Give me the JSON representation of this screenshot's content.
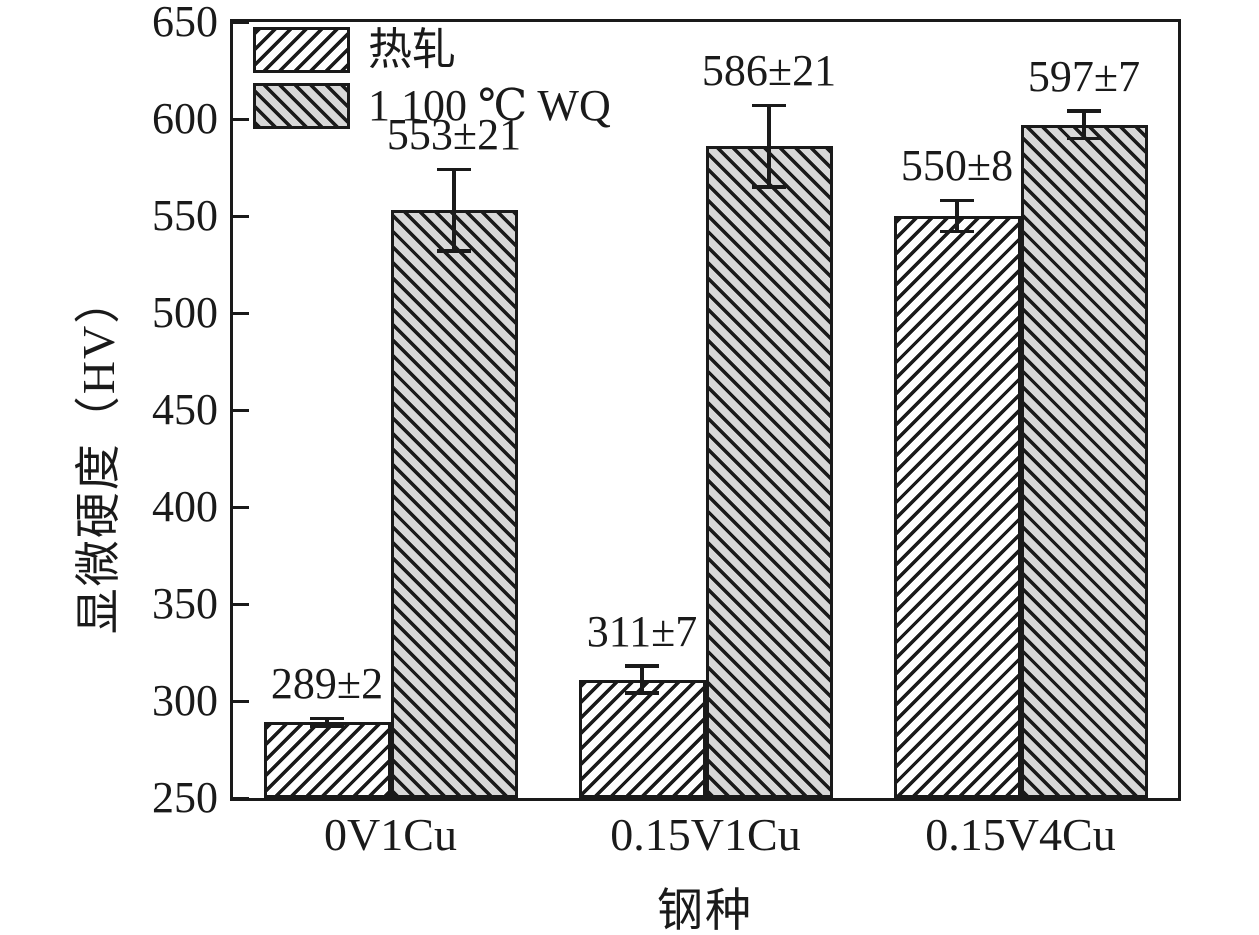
{
  "colors": {
    "ink": "#1a1a1a"
  },
  "chart_data": {
    "type": "bar",
    "title": "",
    "xlabel": "钢种",
    "ylabel": "显微硬度（HV）",
    "ylim": [
      250,
      650
    ],
    "ytick_step": 50,
    "grid": false,
    "legend_position": "top-left",
    "categories": [
      "0V1Cu",
      "0.15V1Cu",
      "0.15V4Cu"
    ],
    "series": [
      {
        "name": "热轧",
        "values": [
          289,
          311,
          550
        ],
        "errors": [
          2,
          7,
          8
        ],
        "labels": [
          "289±2",
          "311±7",
          "550±8"
        ],
        "fill": "#ffffff",
        "hatch": "/"
      },
      {
        "name": "1 100 ℃ WQ",
        "values": [
          553,
          586,
          597
        ],
        "errors": [
          21,
          21,
          7
        ],
        "labels": [
          "553±21",
          "586±21",
          "597±7"
        ],
        "fill": "#d8d8d8",
        "hatch": "\\"
      }
    ]
  }
}
